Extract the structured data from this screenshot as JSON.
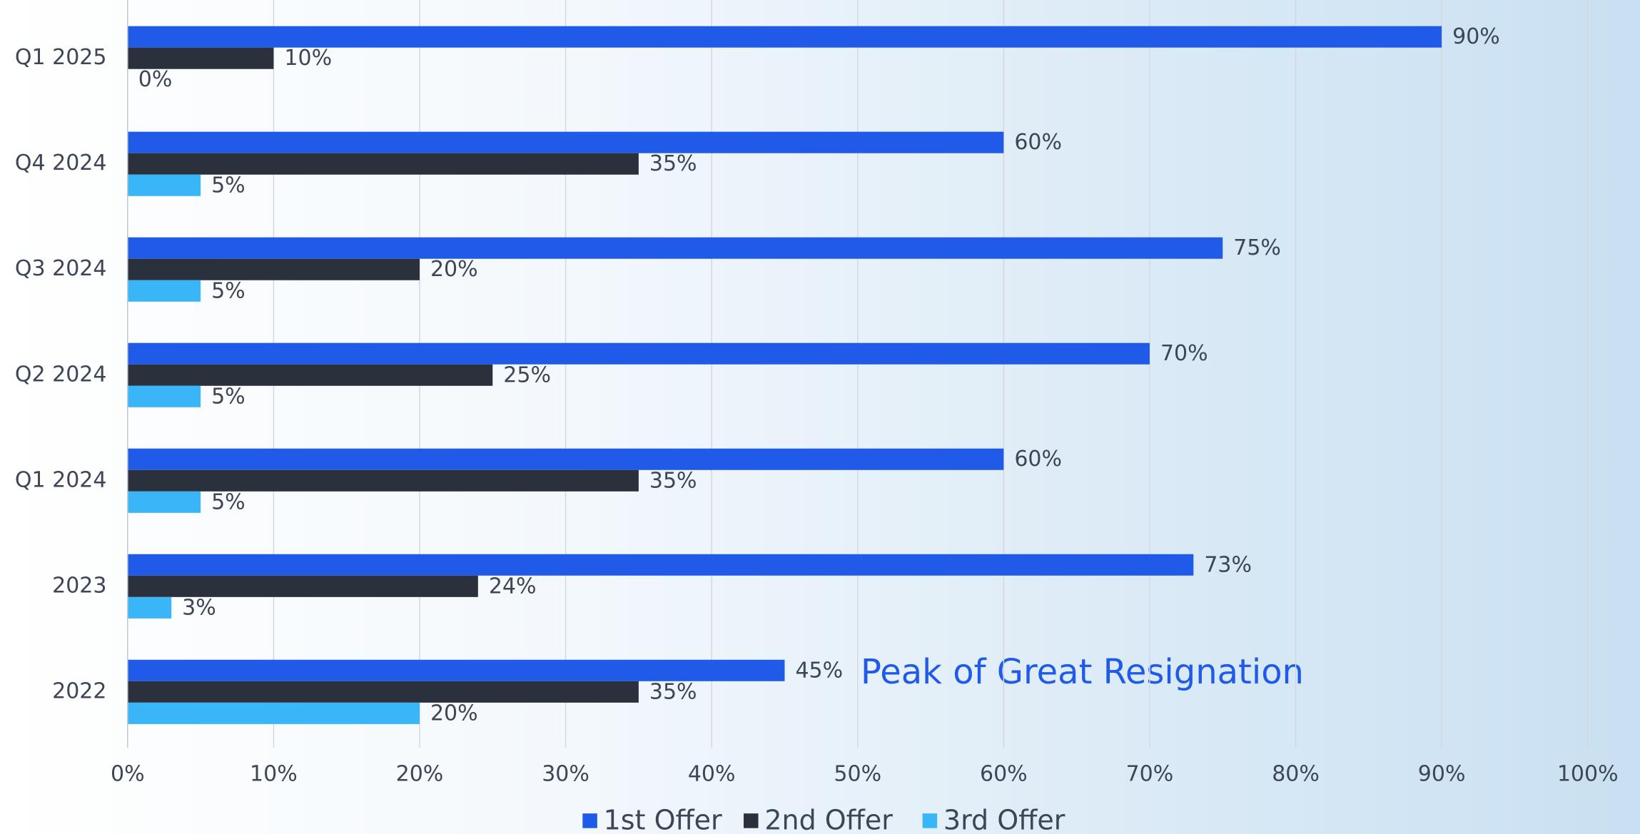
{
  "chart_data": {
    "type": "barh",
    "categories": [
      "Q1 2025",
      "Q4 2024",
      "Q3 2024",
      "Q2 2024",
      "Q1 2024",
      "2023",
      "2022"
    ],
    "series": [
      {
        "name": "1st Offer",
        "color": "#1f5be8",
        "values": [
          90,
          60,
          75,
          70,
          60,
          73,
          45
        ],
        "value_labels": [
          "90%",
          "60%",
          "75%",
          "70%",
          "60%",
          "73%",
          "45%"
        ]
      },
      {
        "name": "2nd Offer",
        "color": "#2b303d",
        "values": [
          10,
          35,
          20,
          25,
          35,
          24,
          35
        ],
        "value_labels": [
          "10%",
          "35%",
          "20%",
          "25%",
          "35%",
          "24%",
          "35%"
        ]
      },
      {
        "name": "3rd Offer",
        "color": "#38b6f8",
        "values": [
          0,
          5,
          5,
          5,
          5,
          3,
          20
        ],
        "value_labels": [
          "0%",
          "5%",
          "5%",
          "5%",
          "5%",
          "3%",
          "20%"
        ]
      }
    ],
    "xlim": [
      0,
      100
    ],
    "xticks": [
      {
        "value": 0,
        "label": "0%"
      },
      {
        "value": 10,
        "label": "10%"
      },
      {
        "value": 20,
        "label": "20%"
      },
      {
        "value": 30,
        "label": "30%"
      },
      {
        "value": 40,
        "label": "40%"
      },
      {
        "value": 50,
        "label": "50%"
      },
      {
        "value": 60,
        "label": "60%"
      },
      {
        "value": 70,
        "label": "70%"
      },
      {
        "value": 80,
        "label": "80%"
      },
      {
        "value": 90,
        "label": "90%"
      },
      {
        "value": 100,
        "label": "100%"
      }
    ],
    "grid": true,
    "legend": "bottom",
    "annotation": "Peak of Great Resignation"
  }
}
